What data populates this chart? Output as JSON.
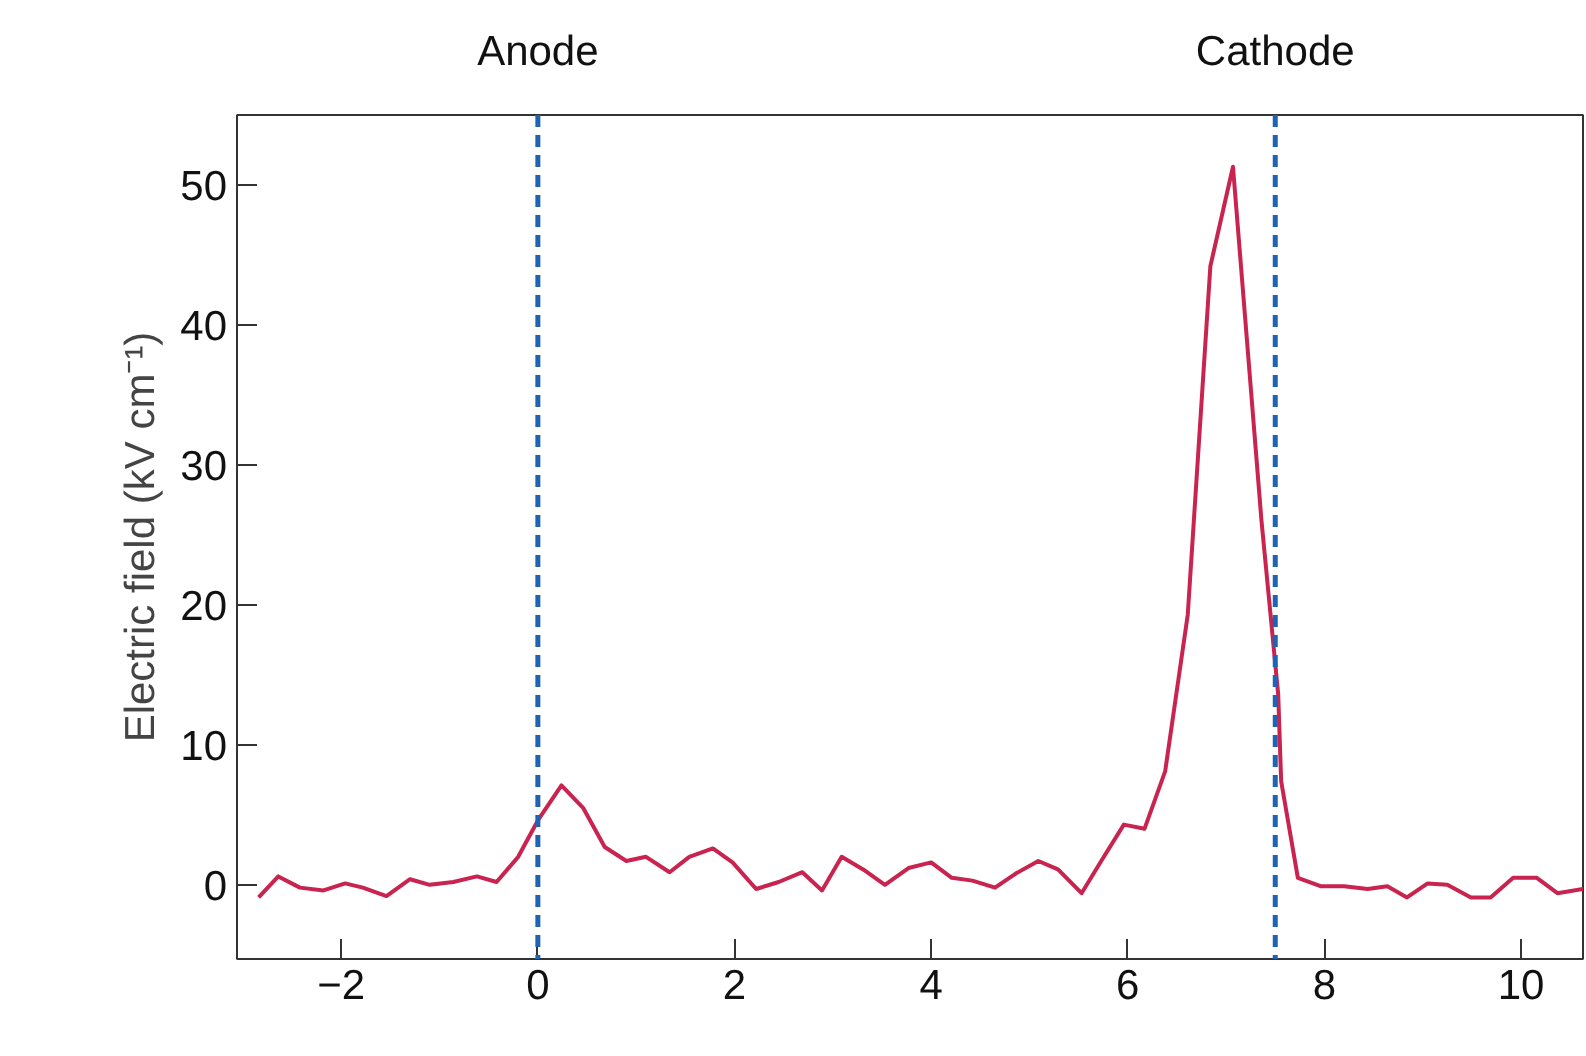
{
  "chart_data": {
    "type": "line",
    "ylabel": "Electric field (kV cm⁻¹)",
    "xlim": [
      -3.06,
      10.63
    ],
    "ylim": [
      -5.3,
      55
    ],
    "xticks": [
      {
        "value": -2,
        "label": "−2"
      },
      0,
      2,
      4,
      6,
      8,
      10
    ],
    "yticks": [
      0,
      10,
      20,
      30,
      40,
      50
    ],
    "grid": false,
    "marker": "none",
    "line_style": "solid",
    "ref_lines": [
      {
        "axis": "x",
        "value": 0,
        "label": "Anode",
        "color": "#1f63b5",
        "line_style": "dashed"
      },
      {
        "axis": "x",
        "value": 7.5,
        "label": "Cathode",
        "color": "#1f63b5",
        "line_style": "dashed"
      }
    ],
    "series": [
      {
        "color": "#c8244f",
        "x": [
          -2.84,
          -2.64,
          -2.42,
          -2.18,
          -1.96,
          -1.78,
          -1.54,
          -1.3,
          -1.1,
          -0.86,
          -0.62,
          -0.42,
          -0.2,
          0,
          0.24,
          0.46,
          0.68,
          0.9,
          1.1,
          1.34,
          1.54,
          1.78,
          1.98,
          2.22,
          2.45,
          2.69,
          2.89,
          3.09,
          3.33,
          3.53,
          3.77,
          4.0,
          4.21,
          4.42,
          4.65,
          4.86,
          5.09,
          5.29,
          5.53,
          5.73,
          5.96,
          6.17,
          6.38,
          6.61,
          6.84,
          7.07,
          7.36,
          7.53,
          7.56,
          7.73,
          7.96,
          8.2,
          8.44,
          8.64,
          8.84,
          9.05,
          9.25,
          9.49,
          9.69,
          9.92,
          10.16,
          10.37,
          10.63
        ],
        "values": [
          -0.9,
          0.6,
          -0.2,
          -0.4,
          0.1,
          -0.2,
          -0.8,
          0.4,
          0,
          0.2,
          0.6,
          0.2,
          2.0,
          4.6,
          7.1,
          5.5,
          2.7,
          1.7,
          2.0,
          0.9,
          2.0,
          2.6,
          1.6,
          -0.3,
          0.2,
          0.9,
          -0.4,
          2.0,
          1.0,
          0,
          1.2,
          1.6,
          0.5,
          0.3,
          -0.2,
          0.8,
          1.7,
          1.1,
          -0.6,
          1.7,
          4.3,
          4.0,
          8.1,
          19.3,
          44.2,
          51.3,
          26,
          13.6,
          7.4,
          0.5,
          -0.1,
          -0.1,
          -0.3,
          -0.1,
          -0.9,
          0.1,
          0,
          -0.9,
          -0.9,
          0.5,
          0.5,
          -0.6,
          -0.3
        ]
      }
    ]
  }
}
